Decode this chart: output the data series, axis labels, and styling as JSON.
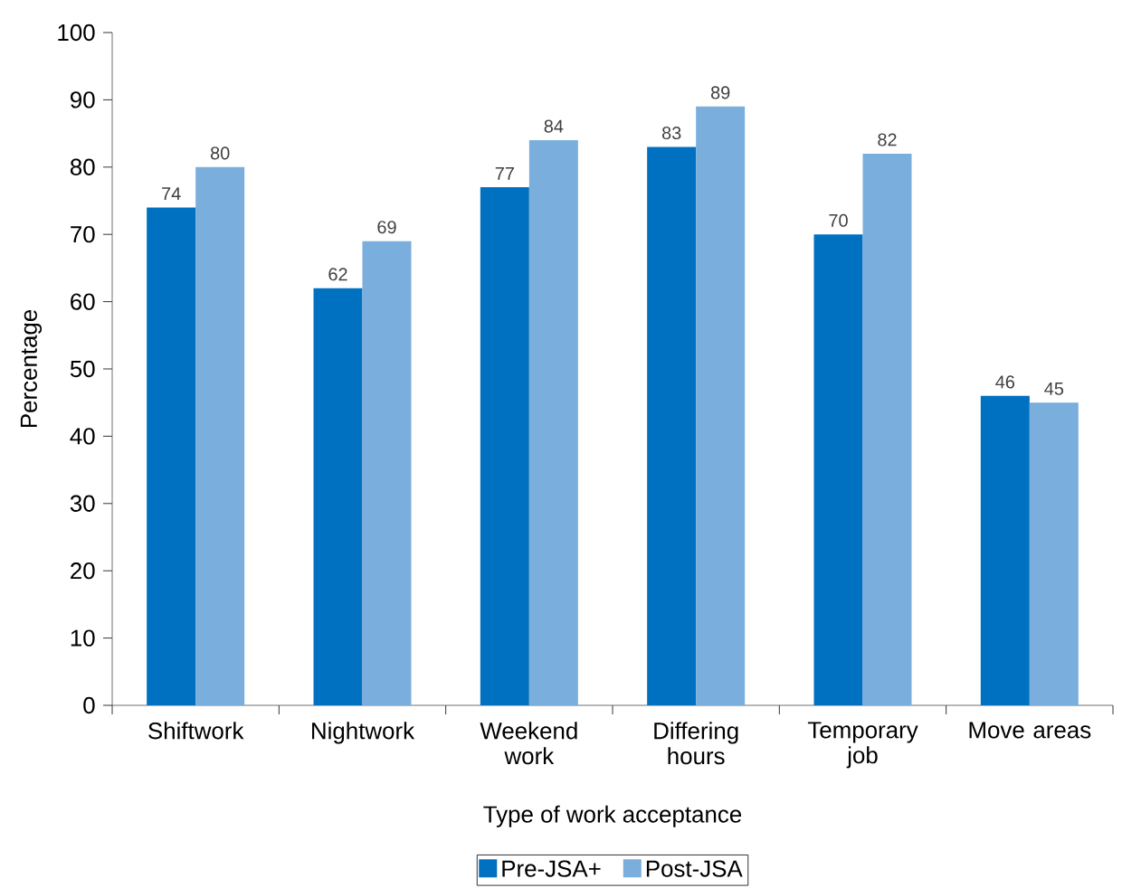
{
  "chart_data": {
    "type": "bar",
    "xlabel": "Type of work acceptance",
    "ylabel": "Percentage",
    "categories": [
      "Shiftwork",
      "Nightwork",
      "Weekend work",
      "Differing hours",
      "Temporary job",
      "Move areas"
    ],
    "series": [
      {
        "name": "Pre-JSA+",
        "color": "#0070c0",
        "values": [
          74,
          62,
          77,
          83,
          70,
          46
        ]
      },
      {
        "name": "Post-JSA",
        "color": "#7aaedc",
        "values": [
          80,
          69,
          84,
          89,
          82,
          45
        ]
      }
    ],
    "ylim": [
      0,
      100
    ],
    "yticks": [
      0,
      10,
      20,
      30,
      40,
      50,
      60,
      70,
      80,
      90,
      100
    ],
    "data_labels": true,
    "legend": "bottom",
    "grid": false
  }
}
